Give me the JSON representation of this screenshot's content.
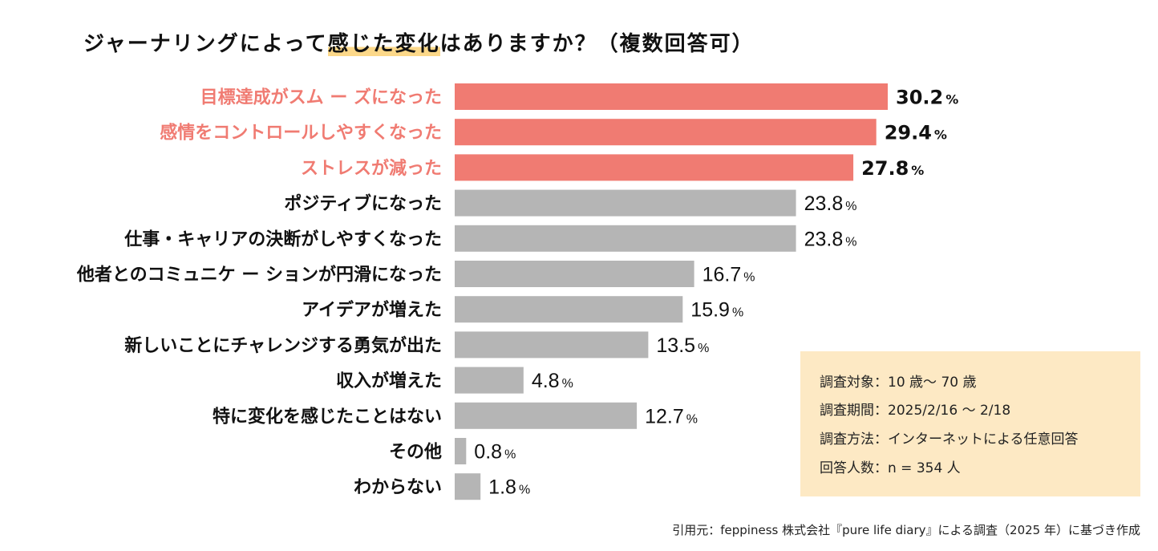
{
  "title": {
    "before": "ジャーナリングによって",
    "highlight": "感じた変化",
    "after": "はありますか？（複数回答可）"
  },
  "colors": {
    "highlight_bar": "#f07b72",
    "default_bar": "#b5b5b5",
    "highlight_label": "#f07b72",
    "default_label": "#111111",
    "title_marker": "#fcd889",
    "info_box_bg": "#fde9c4"
  },
  "chart_data": {
    "type": "bar",
    "orientation": "horizontal",
    "title": "ジャーナリングによって感じた変化はありますか？（複数回答可）",
    "xlabel": "",
    "ylabel": "",
    "unit": "%",
    "xlim": [
      0,
      30.2
    ],
    "grid": false,
    "categories": [
      "目標達成がスムーズになった",
      "感情をコントロールしやすくなった",
      "ストレスが減った",
      "ポジティブになった",
      "仕事・キャリアの決断がしやすくなった",
      "他者とのコミュニケーションが円滑になった",
      "アイデアが増えた",
      "新しいことにチャレンジする勇気が出た",
      "収入が増えた",
      "特に変化を感じたことはない",
      "その他",
      "わからない"
    ],
    "values": [
      30.2,
      29.4,
      27.8,
      23.8,
      23.8,
      16.7,
      15.9,
      13.5,
      4.8,
      12.7,
      0.8,
      1.8
    ],
    "value_labels": [
      "30.2",
      "29.4",
      "27.8",
      "23.8",
      "23.8",
      "16.7",
      "15.9",
      "13.5",
      "4.8",
      "12.7",
      "0.8",
      "1.8"
    ],
    "highlighted": [
      true,
      true,
      true,
      false,
      false,
      false,
      false,
      false,
      false,
      false,
      false,
      false
    ],
    "display_labels": [
      "目標達成がスム ー ズになった",
      "感情をコントロールしやすくなった",
      "ストレスが減った",
      "ポジティブになった",
      "仕事・キャリアの決断がしやすくなった",
      "他者とのコミュニケ ー ションが円滑になった",
      "アイデアが増えた",
      "新しいことにチャレンジする勇気が出た",
      "収入が増えた",
      "特に変化を感じたことはない",
      "その他",
      "わからない"
    ],
    "percent_symbol": "%"
  },
  "info_box": {
    "lines": [
      "調査対象：10 歳〜 70 歳",
      "調査期間：2025/2/16 〜 2/18",
      "調査方法：インターネットによる任意回答",
      "回答人数：n = 354 人"
    ]
  },
  "source": "引用元：feppiness 株式会社『pure life diary』による調査（2025 年）に基づき作成"
}
